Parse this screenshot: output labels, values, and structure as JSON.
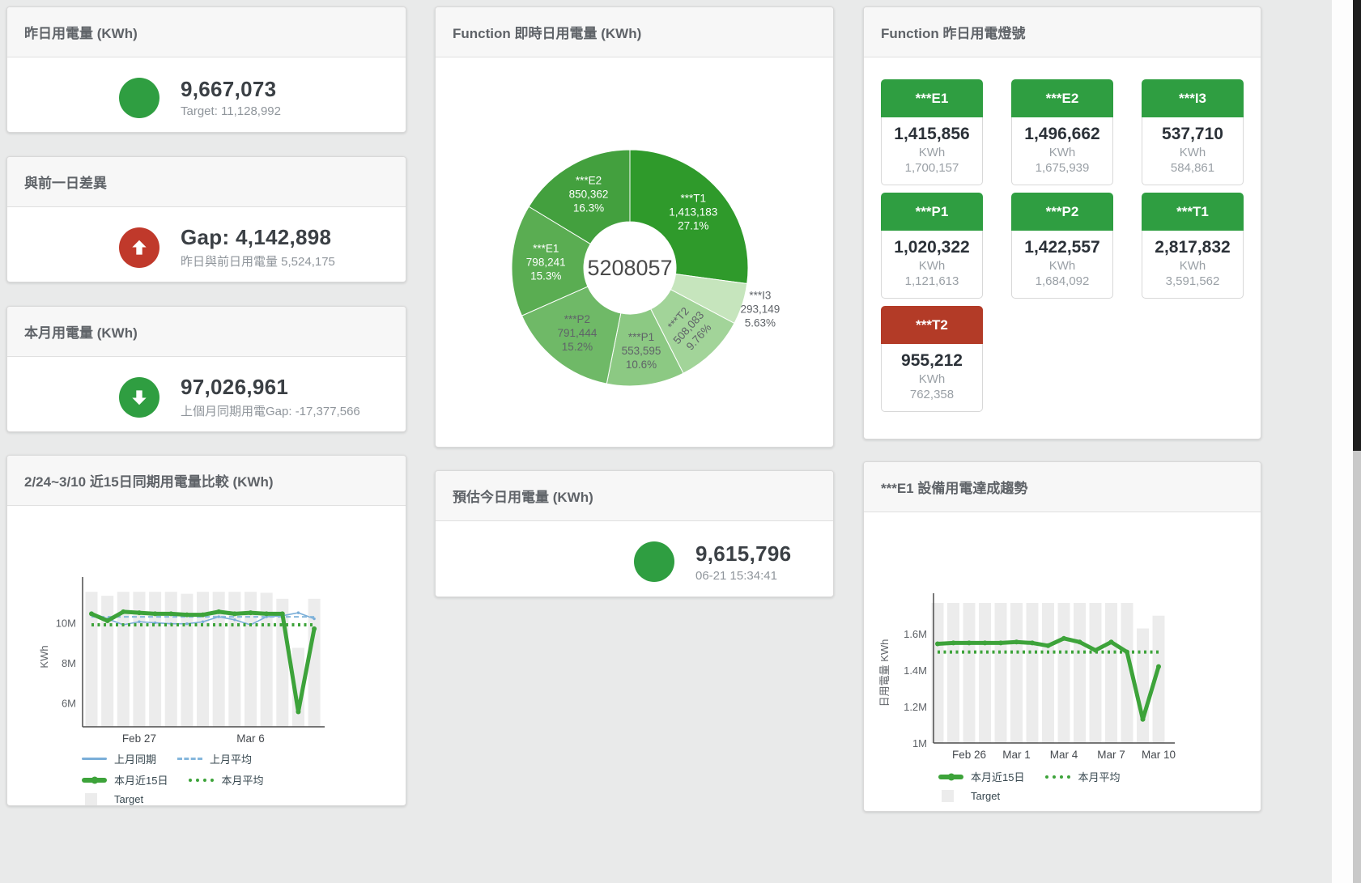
{
  "cards": {
    "yesterday": {
      "title": "昨日用電量 (KWh)",
      "value": "9,667,073",
      "subtitle": "Target: 11,128,992"
    },
    "gap": {
      "title": "與前一日差異",
      "value": "Gap: 4,142,898",
      "subtitle": "昨日與前日用電量 5,524,175"
    },
    "month": {
      "title": "本月用電量 (KWh)",
      "value": "97,026,961",
      "subtitle": "上個月同期用電Gap: -17,377,566"
    },
    "compare": {
      "title": "2/24~3/10 近15日同期用電量比較 (KWh)"
    },
    "donut": {
      "title": "Function 即時日用電量 (KWh)"
    },
    "estimate": {
      "title": "預估今日用電量 (KWh)",
      "value": "9,615,796",
      "subtitle": "06-21 15:34:41"
    },
    "lights": {
      "title": "Function 昨日用電燈號"
    },
    "trend": {
      "title": "***E1 設備用電達成趨勢"
    }
  },
  "lights_tiles": [
    {
      "label": "***E1",
      "value": "1,415,856",
      "unit": "KWh",
      "target": "1,700,157",
      "status": "green"
    },
    {
      "label": "***E2",
      "value": "1,496,662",
      "unit": "KWh",
      "target": "1,675,939",
      "status": "green"
    },
    {
      "label": "***I3",
      "value": "537,710",
      "unit": "KWh",
      "target": "584,861",
      "status": "green"
    },
    {
      "label": "***P1",
      "value": "1,020,322",
      "unit": "KWh",
      "target": "1,121,613",
      "status": "green"
    },
    {
      "label": "***P2",
      "value": "1,422,557",
      "unit": "KWh",
      "target": "1,684,092",
      "status": "green"
    },
    {
      "label": "***T1",
      "value": "2,817,832",
      "unit": "KWh",
      "target": "3,591,562",
      "status": "green"
    },
    {
      "label": "***T2",
      "value": "955,212",
      "unit": "KWh",
      "target": "762,358",
      "status": "red"
    }
  ],
  "chart_data": [
    {
      "id": "donut",
      "type": "pie",
      "title": "Function 即時日用電量 (KWh)",
      "center_label": "5208057",
      "legend_position": "none",
      "grid": false,
      "slices": [
        {
          "name": "***T1",
          "value": "1,413,183",
          "pct": "27.1%",
          "pct_num": 27.1,
          "color": "#2f9a2b",
          "label_color": "#ffffff"
        },
        {
          "name": "***I3",
          "value": "293,149",
          "pct": "5.63%",
          "pct_num": 5.63,
          "color": "#c6e5bd",
          "label_color": "#5f6368",
          "outside": true
        },
        {
          "name": "***T2",
          "value": "508,083",
          "pct": "9.76%",
          "pct_num": 9.76,
          "color": "#a2d499",
          "label_color": "#5f6368",
          "rotate": -48
        },
        {
          "name": "***P1",
          "value": "553,595",
          "pct": "10.6%",
          "pct_num": 10.6,
          "color": "#8cc983",
          "label_color": "#5f6368"
        },
        {
          "name": "***P2",
          "value": "791,444",
          "pct": "15.2%",
          "pct_num": 15.2,
          "color": "#6fb967",
          "label_color": "#5f6368"
        },
        {
          "name": "***E1",
          "value": "798,241",
          "pct": "15.3%",
          "pct_num": 15.3,
          "color": "#5aad52",
          "label_color": "#ffffff"
        },
        {
          "name": "***E2",
          "value": "850,362",
          "pct": "16.3%",
          "pct_num": 16.3,
          "color": "#43a03e",
          "label_color": "#ffffff"
        }
      ]
    },
    {
      "id": "compare",
      "type": "line+bar",
      "title": "2/24~3/10 近15日同期用電量比較 (KWh)",
      "ylabel": "KWh",
      "ylim": [
        4.8,
        11.8
      ],
      "yticks": [
        {
          "v": 6,
          "label": "6M"
        },
        {
          "v": 8,
          "label": "8M"
        },
        {
          "v": 10,
          "label": "10M"
        }
      ],
      "xticks": [
        {
          "i": 3,
          "label": "Feb 27"
        },
        {
          "i": 10,
          "label": "Mar 6"
        }
      ],
      "target_name": "Target",
      "target_bars": [
        11.55,
        11.35,
        11.55,
        11.55,
        11.55,
        11.55,
        11.45,
        11.55,
        11.55,
        11.55,
        11.55,
        11.5,
        11.2,
        8.75,
        11.2
      ],
      "series": [
        {
          "name": "上月同期",
          "style": "thin",
          "color": "#7aaed8",
          "values": [
            10.5,
            10.2,
            9.9,
            10.05,
            10.0,
            9.95,
            9.95,
            10.05,
            10.3,
            10.15,
            9.9,
            10.3,
            10.35,
            10.5,
            10.2
          ]
        },
        {
          "name": "上月平均",
          "style": "dashed",
          "color": "#85b7dc",
          "const": 10.3
        },
        {
          "name": "本月近15日",
          "style": "thick",
          "color": "#3da33a",
          "values": [
            10.45,
            10.1,
            10.55,
            10.5,
            10.45,
            10.45,
            10.4,
            10.4,
            10.55,
            10.45,
            10.5,
            10.45,
            10.45,
            5.55,
            9.7
          ]
        },
        {
          "name": "本月平均",
          "style": "dotted",
          "color": "#3da33a",
          "const": 9.9
        }
      ],
      "legend_rows": [
        [
          "上月同期",
          "上月平均"
        ],
        [
          "本月近15日",
          "本月平均"
        ],
        [
          "Target"
        ]
      ]
    },
    {
      "id": "e1trend",
      "type": "line+bar",
      "title": "***E1 設備用電達成趨勢",
      "ylabel": "日用電量 KWh",
      "ylim": [
        1.0,
        1.77
      ],
      "yticks": [
        {
          "v": 1,
          "label": "1M"
        },
        {
          "v": 1.2,
          "label": "1.2M"
        },
        {
          "v": 1.4,
          "label": "1.4M"
        },
        {
          "v": 1.6,
          "label": "1.6M"
        }
      ],
      "xticks": [
        {
          "i": 2,
          "label": "Feb 26"
        },
        {
          "i": 5,
          "label": "Mar 1"
        },
        {
          "i": 8,
          "label": "Mar 4"
        },
        {
          "i": 11,
          "label": "Mar 7"
        },
        {
          "i": 14,
          "label": "Mar 10"
        }
      ],
      "target_name": "Target",
      "target_bars": [
        1.77,
        1.77,
        1.77,
        1.77,
        1.77,
        1.77,
        1.77,
        1.77,
        1.77,
        1.77,
        1.77,
        1.77,
        1.77,
        1.63,
        1.7
      ],
      "series": [
        {
          "name": "本月近15日",
          "style": "thick",
          "color": "#3da33a",
          "values": [
            1.545,
            1.55,
            1.55,
            1.55,
            1.55,
            1.555,
            1.55,
            1.535,
            1.575,
            1.555,
            1.51,
            1.555,
            1.5,
            1.13,
            1.42
          ]
        },
        {
          "name": "本月平均",
          "style": "dotted",
          "color": "#3da33a",
          "const": 1.5
        }
      ],
      "legend_rows": [
        [
          "本月近15日",
          "本月平均"
        ],
        [
          "Target"
        ]
      ]
    }
  ],
  "colors": {
    "green": "#2f9e41",
    "red": "#c0392b",
    "tile_red": "#b33b27",
    "target_bar": "#ececec"
  }
}
